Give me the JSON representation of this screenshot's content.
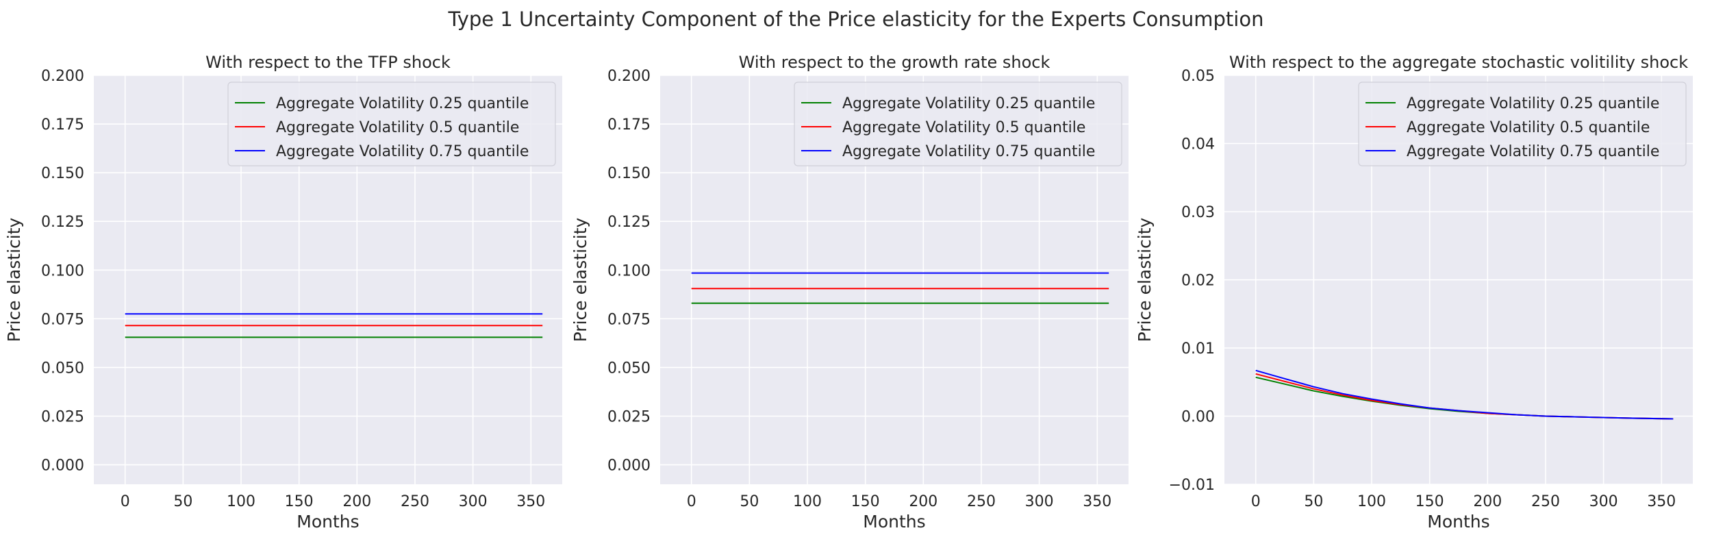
{
  "figure": {
    "suptitle": "Type 1 Uncertainty Component of the Price elasticity for the Experts Consumption"
  },
  "colors": {
    "background": "#eaeaf2",
    "grid": "#ffffff",
    "green": "#008000",
    "red": "#ff0000",
    "blue": "#0000ff"
  },
  "chart_data": [
    {
      "type": "line",
      "title": "With respect to the TFP shock",
      "xlabel": "Months",
      "ylabel": "Price elasticity",
      "xlim": [
        -27,
        377
      ],
      "ylim": [
        -0.01,
        0.2
      ],
      "xticks": [
        0,
        50,
        100,
        150,
        200,
        250,
        300,
        350
      ],
      "xtick_labels": [
        "0",
        "50",
        "100",
        "150",
        "200",
        "250",
        "300",
        "350"
      ],
      "yticks": [
        0.0,
        0.025,
        0.05,
        0.075,
        0.1,
        0.125,
        0.15,
        0.175,
        0.2
      ],
      "ytick_labels": [
        "0.000",
        "0.025",
        "0.050",
        "0.075",
        "0.100",
        "0.125",
        "0.150",
        "0.175",
        "0.200"
      ],
      "grid": true,
      "legend": "top-right",
      "x": [
        0,
        360
      ],
      "series": [
        {
          "name": "Aggregate Volatility 0.25 quantile",
          "color": "#008000",
          "values": [
            0.0655,
            0.0655
          ]
        },
        {
          "name": "Aggregate Volatility 0.5 quantile",
          "color": "#ff0000",
          "values": [
            0.0715,
            0.0715
          ]
        },
        {
          "name": "Aggregate Volatility 0.75 quantile",
          "color": "#0000ff",
          "values": [
            0.0775,
            0.0775
          ]
        }
      ]
    },
    {
      "type": "line",
      "title": "With respect to the growth rate shock",
      "xlabel": "Months",
      "ylabel": "Price elasticity",
      "xlim": [
        -27,
        377
      ],
      "ylim": [
        -0.01,
        0.2
      ],
      "xticks": [
        0,
        50,
        100,
        150,
        200,
        250,
        300,
        350
      ],
      "xtick_labels": [
        "0",
        "50",
        "100",
        "150",
        "200",
        "250",
        "300",
        "350"
      ],
      "yticks": [
        0.0,
        0.025,
        0.05,
        0.075,
        0.1,
        0.125,
        0.15,
        0.175,
        0.2
      ],
      "ytick_labels": [
        "0.000",
        "0.025",
        "0.050",
        "0.075",
        "0.100",
        "0.125",
        "0.150",
        "0.175",
        "0.200"
      ],
      "grid": true,
      "legend": "top-right",
      "x": [
        0,
        360
      ],
      "series": [
        {
          "name": "Aggregate Volatility 0.25 quantile",
          "color": "#008000",
          "values": [
            0.083,
            0.083
          ]
        },
        {
          "name": "Aggregate Volatility 0.5 quantile",
          "color": "#ff0000",
          "values": [
            0.0905,
            0.0905
          ]
        },
        {
          "name": "Aggregate Volatility 0.75 quantile",
          "color": "#0000ff",
          "values": [
            0.0985,
            0.0985
          ]
        }
      ]
    },
    {
      "type": "line",
      "title": "With respect to the aggregate stochastic volitility shock",
      "xlabel": "Months",
      "ylabel": "Price elasticity",
      "xlim": [
        -27,
        377
      ],
      "ylim": [
        -0.01,
        0.05
      ],
      "xticks": [
        0,
        50,
        100,
        150,
        200,
        250,
        300,
        350
      ],
      "xtick_labels": [
        "0",
        "50",
        "100",
        "150",
        "200",
        "250",
        "300",
        "350"
      ],
      "yticks": [
        -0.01,
        0.0,
        0.01,
        0.02,
        0.03,
        0.04,
        0.05
      ],
      "ytick_labels": [
        "−0.01",
        "0.00",
        "0.01",
        "0.02",
        "0.03",
        "0.04",
        "0.05"
      ],
      "grid": true,
      "legend": "top-right",
      "x": [
        0,
        25,
        50,
        75,
        100,
        125,
        150,
        175,
        200,
        225,
        250,
        275,
        300,
        325,
        360
      ],
      "series": [
        {
          "name": "Aggregate Volatility 0.25 quantile",
          "color": "#008000",
          "values": [
            0.0057,
            0.0047,
            0.0037,
            0.0029,
            0.0022,
            0.0016,
            0.0011,
            0.0007,
            0.0004,
            0.0002,
            0.0,
            -0.0001,
            -0.0002,
            -0.0003,
            -0.0004
          ]
        },
        {
          "name": "Aggregate Volatility 0.5 quantile",
          "color": "#ff0000",
          "values": [
            0.0062,
            0.0051,
            0.004,
            0.0031,
            0.0023,
            0.0017,
            0.0012,
            0.0008,
            0.0004,
            0.0002,
            0.0,
            -0.0001,
            -0.0002,
            -0.0003,
            -0.0004
          ]
        },
        {
          "name": "Aggregate Volatility 0.75 quantile",
          "color": "#0000ff",
          "values": [
            0.0067,
            0.0055,
            0.0043,
            0.0033,
            0.0025,
            0.0018,
            0.0012,
            0.0008,
            0.0005,
            0.0002,
            0.0,
            -0.0001,
            -0.0002,
            -0.0003,
            -0.0004
          ]
        }
      ]
    }
  ]
}
